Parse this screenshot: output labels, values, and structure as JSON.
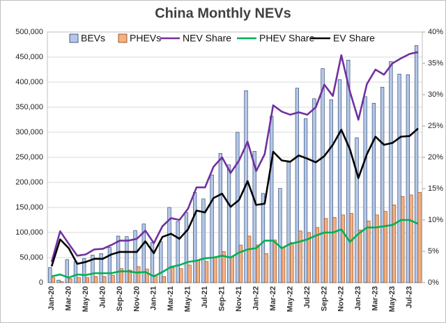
{
  "chart_data": {
    "type": "bar",
    "title": "China Monthly NEVs",
    "categories": [
      "Jan-20",
      null,
      "Mar-20",
      null,
      "May-20",
      null,
      "Jul-20",
      null,
      "Sep-20",
      null,
      "Nov-20",
      null,
      "Jan-21",
      null,
      "Mar-21",
      null,
      "May-21",
      null,
      "Jul-21",
      null,
      "Sep-21",
      null,
      "Nov-21",
      null,
      "Jan-22",
      null,
      "Mar-22",
      null,
      "May-22",
      null,
      "Jul-22",
      null,
      "Sep-22",
      null,
      "Nov-22",
      null,
      "Jan-23",
      null,
      "Mar-23",
      null,
      "May-23",
      null,
      "Jul-23",
      null
    ],
    "series": [
      {
        "name": "BEVs",
        "type": "bar",
        "color": "#b4c7e7",
        "values": [
          30000,
          5000,
          46000,
          42000,
          48000,
          55000,
          58000,
          70000,
          93000,
          92000,
          104000,
          117000,
          80000,
          82000,
          150000,
          122000,
          140000,
          180000,
          167000,
          215000,
          258000,
          235000,
          300000,
          383000,
          262000,
          178000,
          332000,
          188000,
          240000,
          388000,
          327000,
          367000,
          427000,
          365000,
          405000,
          444000,
          289000,
          371000,
          358000,
          390000,
          441000,
          416000,
          415000,
          473000
        ]
      },
      {
        "name": "PHEVs",
        "type": "bar",
        "color": "#f4b183",
        "values": [
          10000,
          2000,
          8000,
          10000,
          10000,
          12000,
          12000,
          15000,
          28000,
          25000,
          32000,
          27000,
          15000,
          12000,
          30000,
          28000,
          35000,
          45000,
          42000,
          50000,
          62000,
          52000,
          75000,
          93000,
          75000,
          58000,
          85000,
          70000,
          80000,
          103000,
          100000,
          110000,
          128000,
          130000,
          135000,
          138000,
          105000,
          123000,
          135000,
          142000,
          155000,
          172000,
          175000,
          180000
        ]
      },
      {
        "name": "NEV Share",
        "type": "line",
        "axis": "y2",
        "color": "#7030a0",
        "values": [
          3.3,
          8.2,
          6.2,
          4.3,
          4.5,
          5.3,
          5.4,
          6.0,
          6.7,
          6.7,
          7.0,
          8.3,
          6.3,
          9.0,
          10.3,
          10.0,
          11.8,
          15.2,
          15.2,
          18.5,
          20.0,
          17.5,
          19.5,
          22.5,
          17.8,
          20.5,
          28.3,
          27.3,
          26.8,
          27.2,
          26.8,
          28.0,
          31.6,
          29.8,
          36.3,
          30.5,
          26.0,
          31.7,
          34.0,
          33.2,
          35.0,
          35.8,
          36.5,
          36.8
        ]
      },
      {
        "name": "PHEV Share",
        "type": "line",
        "axis": "y2",
        "color": "#00b050",
        "values": [
          1.0,
          1.3,
          0.8,
          1.3,
          1.2,
          1.5,
          1.5,
          1.5,
          1.8,
          1.8,
          1.6,
          1.7,
          1.0,
          1.7,
          2.5,
          2.8,
          3.3,
          3.5,
          3.9,
          4.0,
          4.3,
          4.0,
          4.8,
          5.3,
          5.5,
          6.7,
          6.7,
          5.5,
          6.2,
          6.5,
          6.9,
          7.5,
          8.0,
          8.0,
          8.5,
          6.5,
          7.8,
          8.8,
          8.8,
          9.0,
          9.2,
          10.0,
          10.0,
          9.4
        ]
      },
      {
        "name": "EV Share",
        "type": "line",
        "axis": "y2",
        "color": "#000000",
        "values": [
          2.6,
          6.9,
          5.5,
          3.0,
          3.3,
          3.8,
          3.8,
          4.5,
          4.9,
          4.9,
          4.9,
          6.6,
          4.7,
          7.3,
          7.8,
          7.0,
          8.5,
          11.5,
          11.2,
          13.5,
          14.2,
          12.1,
          13.2,
          16.2,
          12.4,
          12.6,
          20.9,
          19.5,
          19.3,
          20.3,
          19.8,
          19.2,
          20.2,
          22.0,
          24.4,
          21.3,
          16.7,
          20.5,
          23.3,
          22.0,
          22.3,
          23.3,
          23.4,
          24.6
        ]
      }
    ],
    "ylim": [
      0,
      500000
    ],
    "yticks": [
      0,
      {
        "value": 50000,
        "label": "50,000"
      },
      {
        "value": 100000,
        "label": "100,000"
      },
      {
        "value": 150000,
        "label": "150,000"
      },
      {
        "value": 200000,
        "label": "200,000"
      },
      {
        "value": 250000,
        "label": "250,000"
      },
      {
        "value": 300000,
        "label": "300,000"
      },
      {
        "value": 350000,
        "label": "350,000"
      },
      {
        "value": 400000,
        "label": "400,000"
      },
      {
        "value": 450000,
        "label": "450,000"
      },
      {
        "value": 500000,
        "label": "500,000"
      }
    ],
    "y2lim": [
      0,
      40
    ],
    "y2ticks": [
      {
        "value": 0,
        "label": "0%"
      },
      {
        "value": 5,
        "label": "5%"
      },
      {
        "value": 10,
        "label": "10%"
      },
      {
        "value": 15,
        "label": "15%"
      },
      {
        "value": 20,
        "label": "20%"
      },
      {
        "value": 25,
        "label": "25%"
      },
      {
        "value": 30,
        "label": "30%"
      },
      {
        "value": 35,
        "label": "35%"
      },
      {
        "value": 40,
        "label": "40%"
      }
    ],
    "grid": true,
    "legend": "top"
  }
}
